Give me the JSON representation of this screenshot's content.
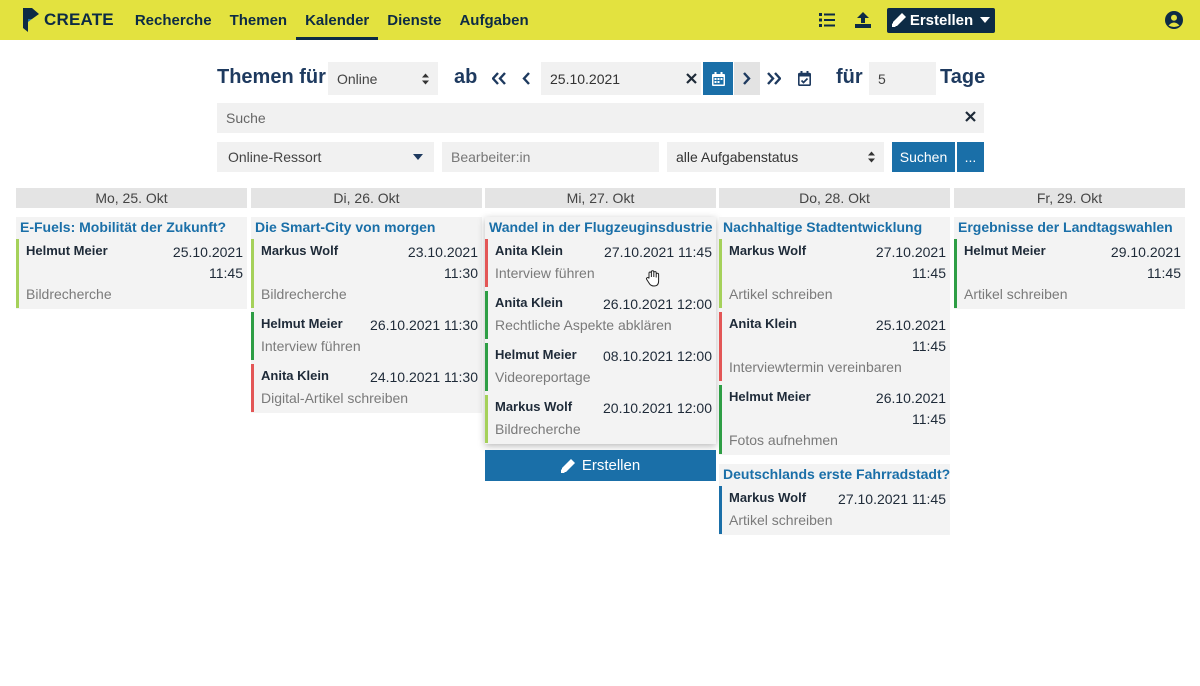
{
  "app": {
    "brand": "CREATE"
  },
  "nav": {
    "items": [
      "Recherche",
      "Themen",
      "Kalender",
      "Dienste",
      "Aufgaben"
    ],
    "active": "Kalender"
  },
  "header": {
    "create_label": "Erstellen",
    "icons": [
      "list-icon",
      "upload-icon",
      "pencil-icon",
      "user-icon"
    ]
  },
  "filters": {
    "themen_label": "Themen für",
    "channel": "Online",
    "ab_label": "ab",
    "date": "25.10.2021",
    "fuer_label": "für",
    "days": "5",
    "tage_label": "Tage",
    "search_placeholder": "Suche",
    "ressort": "Online-Ressort",
    "editor_placeholder": "Bearbeiter:in",
    "status": "alle Aufgabenstatus",
    "search_button": "Suchen",
    "more_button": "..."
  },
  "calendar": {
    "create_label": "Erstellen",
    "days": [
      {
        "label": "Mo, 25. Okt",
        "topics": [
          {
            "title": "E-Fuels: Mobilität der Zukunft?",
            "tasks": [
              {
                "name": "Helmut Meier",
                "date": "25.10.2021 11:45",
                "desc": "Bildrecherche",
                "status": "lime"
              }
            ]
          }
        ]
      },
      {
        "label": "Di, 26. Okt",
        "topics": [
          {
            "title": "Die Smart-City von morgen",
            "tasks": [
              {
                "name": "Markus Wolf",
                "date": "23.10.2021 11:30",
                "desc": "Bildrecherche",
                "status": "lime"
              },
              {
                "name": "Helmut Meier",
                "date": "26.10.2021 11:30",
                "desc": "Interview führen",
                "status": "green"
              },
              {
                "name": "Anita Klein",
                "date": "24.10.2021 11:30",
                "desc": "Digital-Artikel schreiben",
                "status": "red"
              }
            ]
          }
        ]
      },
      {
        "label": "Mi, 27. Okt",
        "topics": [
          {
            "title": "Wandel in der Flugzeuginsdustrie",
            "tasks": [
              {
                "name": "Anita Klein",
                "date": "27.10.2021 11:45",
                "desc": "Interview führen",
                "status": "red"
              },
              {
                "name": "Anita Klein",
                "date": "26.10.2021 12:00",
                "desc": "Rechtliche Aspekte abklären",
                "status": "green"
              },
              {
                "name": "Helmut Meier",
                "date": "08.10.2021 12:00",
                "desc": "Videoreportage",
                "status": "green"
              },
              {
                "name": "Markus Wolf",
                "date": "20.10.2021 12:00",
                "desc": "Bildrecherche",
                "status": "lime"
              }
            ]
          }
        ]
      },
      {
        "label": "Do, 28. Okt",
        "topics": [
          {
            "title": "Nachhaltige Stadtentwicklung",
            "tasks": [
              {
                "name": "Markus Wolf",
                "date": "27.10.2021 11:45",
                "desc": "Artikel schreiben",
                "status": "lime"
              },
              {
                "name": "Anita Klein",
                "date": "25.10.2021 11:45",
                "desc": "Interviewtermin vereinbaren",
                "status": "red"
              },
              {
                "name": "Helmut Meier",
                "date": "26.10.2021 11:45",
                "desc": "Fotos aufnehmen",
                "status": "green"
              }
            ]
          },
          {
            "title": "Deutschlands erste Fahrradstadt?",
            "tasks": [
              {
                "name": "Markus Wolf",
                "date": "27.10.2021 11:45",
                "desc": "Artikel schreiben",
                "status": "blue"
              }
            ]
          }
        ]
      },
      {
        "label": "Fr, 29. Okt",
        "topics": [
          {
            "title": "Ergebnisse der Landtagswahlen",
            "tasks": [
              {
                "name": "Helmut Meier",
                "date": "29.10.2021 11:45",
                "desc": "Artikel schreiben",
                "status": "green"
              }
            ]
          }
        ]
      }
    ]
  }
}
